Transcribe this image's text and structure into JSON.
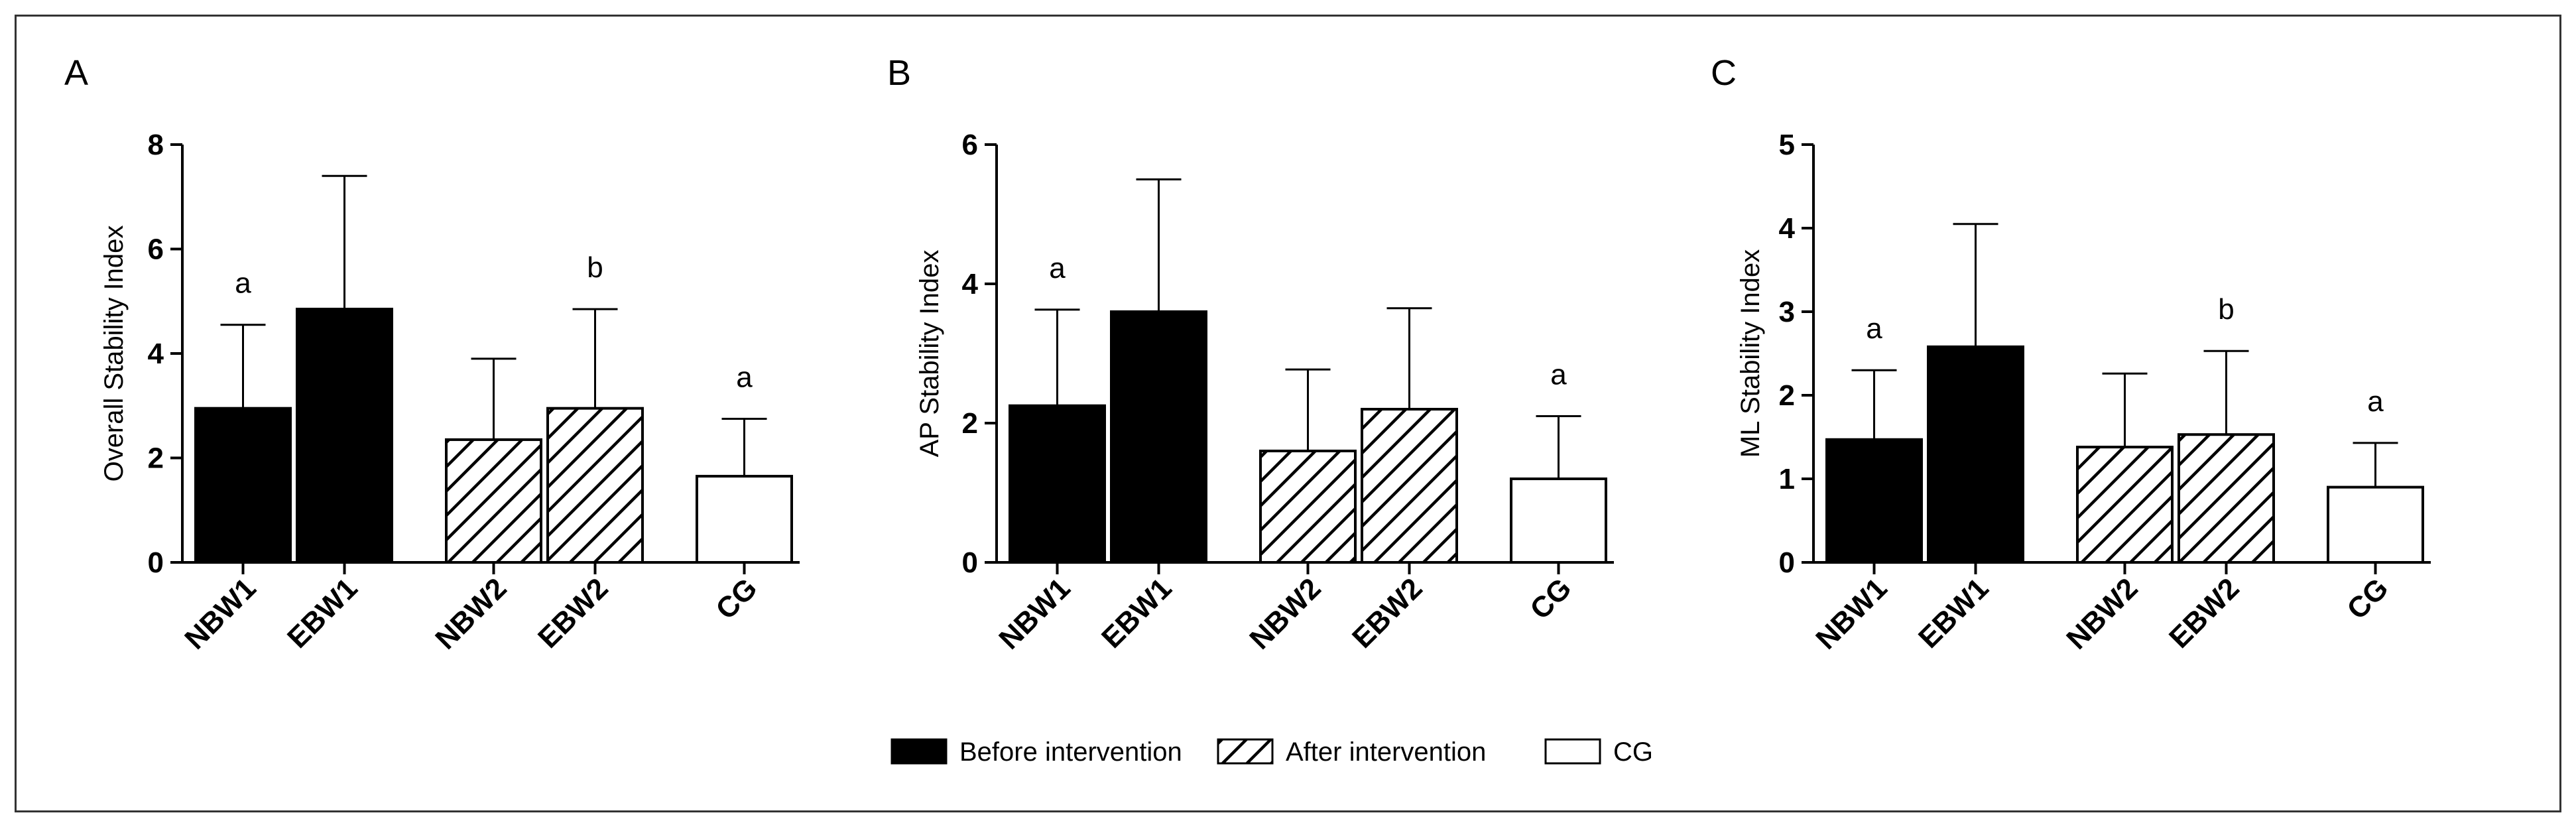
{
  "colors": {
    "before": "#000000",
    "after_hatch": "#000000",
    "cg_fill": "#ffffff",
    "axis": "#000000"
  },
  "legend": {
    "items": [
      {
        "label": "Before intervention",
        "style": "solid-black"
      },
      {
        "label": "After intervention",
        "style": "hatched"
      },
      {
        "label": "CG",
        "style": "white"
      }
    ]
  },
  "chart_data": [
    {
      "type": "bar",
      "panel": "A",
      "ylabel": "Overall Stability Index",
      "ylim": [
        0,
        8
      ],
      "yticks": [
        0,
        2,
        4,
        6,
        8
      ],
      "categories": [
        "NBW1",
        "EBW1",
        "NBW2",
        "EBW2",
        "CG"
      ],
      "styles": [
        "solid",
        "solid",
        "hatched",
        "hatched",
        "white"
      ],
      "values": [
        2.95,
        4.85,
        2.35,
        2.95,
        1.65
      ],
      "errors": [
        1.6,
        2.55,
        1.55,
        1.9,
        1.1
      ],
      "annotations": [
        "a",
        "",
        "",
        "b",
        "a"
      ]
    },
    {
      "type": "bar",
      "panel": "B",
      "ylabel": "AP Stability Index",
      "ylim": [
        0,
        6
      ],
      "yticks": [
        0,
        2,
        4,
        6
      ],
      "categories": [
        "NBW1",
        "EBW1",
        "NBW2",
        "EBW2",
        "CG"
      ],
      "styles": [
        "solid",
        "solid",
        "hatched",
        "hatched",
        "white"
      ],
      "values": [
        2.25,
        3.6,
        1.6,
        2.2,
        1.2
      ],
      "errors": [
        1.38,
        1.9,
        1.17,
        1.45,
        0.9
      ],
      "annotations": [
        "a",
        "",
        "",
        "",
        "a"
      ]
    },
    {
      "type": "bar",
      "panel": "C",
      "ylabel": "ML Stability Index",
      "ylim": [
        0,
        5
      ],
      "yticks": [
        0,
        1,
        2,
        3,
        4,
        5
      ],
      "categories": [
        "NBW1",
        "EBW1",
        "NBW2",
        "EBW2",
        "CG"
      ],
      "styles": [
        "solid",
        "solid",
        "hatched",
        "hatched",
        "white"
      ],
      "values": [
        1.47,
        2.58,
        1.38,
        1.53,
        0.9
      ],
      "errors": [
        0.83,
        1.47,
        0.88,
        1.0,
        0.53
      ],
      "annotations": [
        "a",
        "",
        "",
        "b",
        "a"
      ]
    }
  ]
}
